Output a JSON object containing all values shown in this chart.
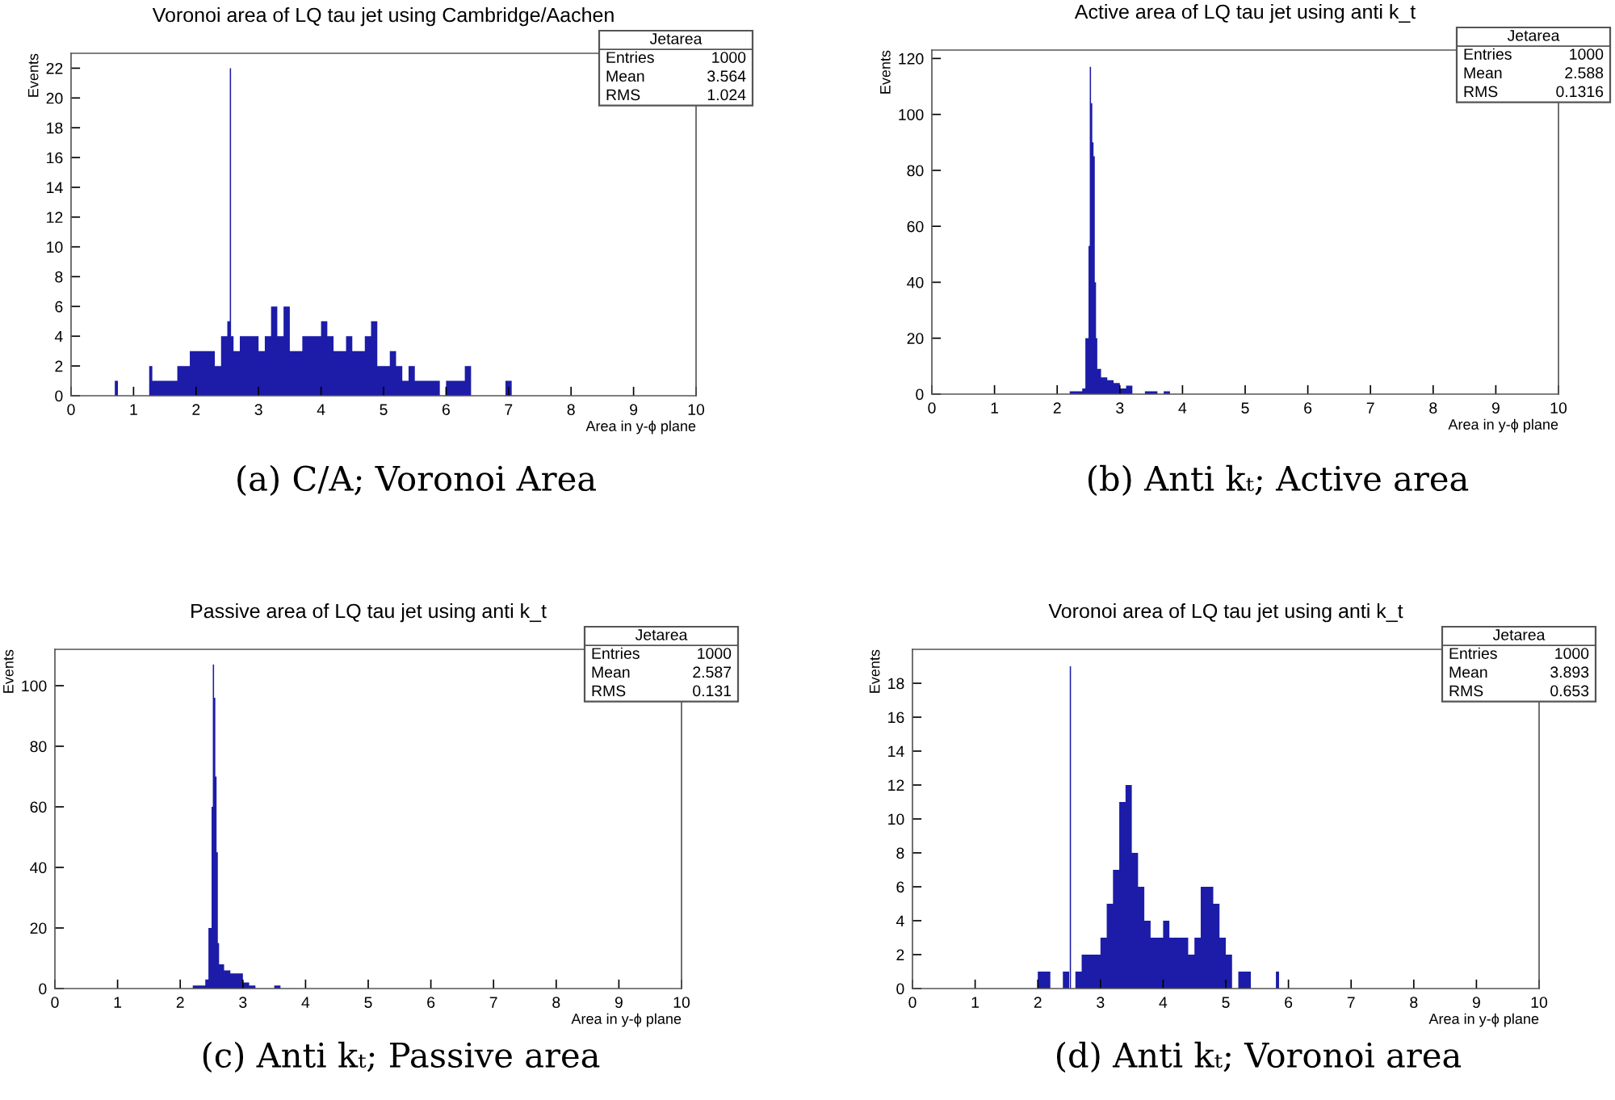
{
  "chart_data": [
    {
      "type": "histogram",
      "title": "Voronoi area of LQ tau jet using Cambridge/Aachen",
      "xlabel": "Area in y-ϕ plane",
      "ylabel": "Events",
      "color": "#1c1ca8",
      "bins": [
        0,
        0.7,
        0.75,
        1.25,
        1.3,
        1.4,
        1.5,
        1.6,
        1.7,
        1.8,
        1.9,
        2.0,
        2.1,
        2.2,
        2.3,
        2.4,
        2.5,
        2.54,
        2.56,
        2.6,
        2.7,
        2.8,
        2.9,
        3.0,
        3.1,
        3.2,
        3.3,
        3.4,
        3.5,
        3.6,
        3.7,
        3.8,
        3.9,
        4.0,
        4.1,
        4.2,
        4.3,
        4.4,
        4.5,
        4.6,
        4.7,
        4.8,
        4.9,
        5.0,
        5.1,
        5.2,
        5.3,
        5.4,
        5.5,
        5.6,
        5.7,
        5.8,
        5.9,
        6.0,
        6.1,
        6.2,
        6.3,
        6.4,
        6.95,
        7.05,
        10
      ],
      "values": [
        0,
        1,
        0,
        2,
        1,
        1,
        1,
        1,
        2,
        2,
        3,
        3,
        3,
        3,
        2,
        4,
        5,
        22,
        4,
        3,
        4,
        4,
        4,
        3,
        4,
        6,
        4,
        6,
        3,
        3,
        4,
        4,
        4,
        5,
        4,
        3,
        3,
        4,
        3,
        3,
        4,
        5,
        2,
        2,
        3,
        2,
        1,
        2,
        1,
        1,
        1,
        1,
        0,
        1,
        1,
        1,
        2,
        0,
        1,
        0
      ],
      "xlim": [
        0,
        10
      ],
      "xticks": [
        0,
        1,
        2,
        3,
        4,
        5,
        6,
        7,
        8,
        9,
        10
      ],
      "ylim": [
        0,
        23
      ],
      "yticks": [
        0,
        2,
        4,
        6,
        8,
        10,
        12,
        14,
        16,
        18,
        20,
        22
      ],
      "grid": false,
      "annotations": [
        "Jetarea",
        "Entries",
        "1000",
        "Mean",
        "3.564",
        "RMS",
        "1.024",
        "(a) C/A; Voronoi Area"
      ]
    },
    {
      "type": "histogram",
      "title": "Active area of LQ tau jet using anti k_t",
      "xlabel": "Area in y-ϕ plane",
      "ylabel": "Events",
      "color": "#1c1ca8",
      "bins": [
        0,
        2.2,
        2.3,
        2.4,
        2.45,
        2.5,
        2.52,
        2.54,
        2.56,
        2.58,
        2.6,
        2.62,
        2.64,
        2.7,
        2.8,
        2.9,
        3.0,
        3.1,
        3.2,
        3.4,
        3.6,
        3.7,
        3.8,
        10
      ],
      "values": [
        0,
        1,
        1,
        2,
        20,
        53,
        117,
        104,
        90,
        85,
        40,
        20,
        9,
        6,
        5,
        4,
        2,
        3,
        0,
        1,
        0,
        1,
        0
      ],
      "xlim": [
        0,
        10
      ],
      "xticks": [
        0,
        1,
        2,
        3,
        4,
        5,
        6,
        7,
        8,
        9,
        10
      ],
      "ylim": [
        0,
        123
      ],
      "yticks": [
        0,
        20,
        40,
        60,
        80,
        100,
        120
      ],
      "grid": false,
      "annotations": [
        "Jetarea",
        "Entries",
        "1000",
        "Mean",
        "2.588",
        "RMS",
        "0.1316",
        "(b) Anti kₜ; Active area"
      ]
    },
    {
      "type": "histogram",
      "title": "Passive area of LQ tau jet using anti k_t",
      "xlabel": "Area in y-ϕ plane",
      "ylabel": "Events",
      "color": "#1c1ca8",
      "bins": [
        0,
        2.2,
        2.4,
        2.45,
        2.5,
        2.52,
        2.54,
        2.56,
        2.58,
        2.6,
        2.62,
        2.7,
        2.8,
        2.9,
        3.0,
        3.1,
        3.2,
        3.5,
        3.6,
        10
      ],
      "values": [
        0,
        1,
        3,
        20,
        60,
        107,
        96,
        70,
        45,
        15,
        8,
        6,
        5,
        5,
        2,
        1,
        0,
        1,
        0
      ],
      "xlim": [
        0,
        10
      ],
      "xticks": [
        0,
        1,
        2,
        3,
        4,
        5,
        6,
        7,
        8,
        9,
        10
      ],
      "ylim": [
        0,
        112
      ],
      "yticks": [
        0,
        20,
        40,
        60,
        80,
        100
      ],
      "grid": false,
      "annotations": [
        "Jetarea",
        "Entries",
        "1000",
        "Mean",
        "2.587",
        "RMS",
        "0.131",
        "(c) Anti kₜ; Passive area"
      ]
    },
    {
      "type": "histogram",
      "title": "Voronoi area of LQ tau jet using anti k_t",
      "xlabel": "Area in y-ϕ plane",
      "ylabel": "Events",
      "color": "#1c1ca8",
      "bins": [
        0,
        2.0,
        2.1,
        2.2,
        2.4,
        2.5,
        2.51,
        2.53,
        2.6,
        2.7,
        2.8,
        2.9,
        3.0,
        3.1,
        3.2,
        3.3,
        3.4,
        3.5,
        3.6,
        3.7,
        3.8,
        3.9,
        4.0,
        4.1,
        4.2,
        4.3,
        4.4,
        4.5,
        4.6,
        4.7,
        4.8,
        4.9,
        5.0,
        5.1,
        5.2,
        5.3,
        5.4,
        5.8,
        5.85,
        10
      ],
      "values": [
        0,
        1,
        1,
        0,
        1,
        0,
        19,
        0,
        1,
        2,
        2,
        2,
        3,
        5,
        7,
        11,
        12,
        8,
        6,
        4,
        3,
        3,
        4,
        3,
        3,
        3,
        2,
        3,
        6,
        6,
        5,
        3,
        2,
        0,
        1,
        1,
        0,
        1,
        0
      ],
      "xlim": [
        0,
        10
      ],
      "xticks": [
        0,
        1,
        2,
        3,
        4,
        5,
        6,
        7,
        8,
        9,
        10
      ],
      "ylim": [
        0,
        20
      ],
      "yticks": [
        0,
        2,
        4,
        6,
        8,
        10,
        12,
        14,
        16,
        18
      ],
      "grid": false,
      "annotations": [
        "Jetarea",
        "Entries",
        "1000",
        "Mean",
        "3.893",
        "RMS",
        "0.653",
        "(d) Anti kₜ; Voronoi area"
      ]
    }
  ]
}
